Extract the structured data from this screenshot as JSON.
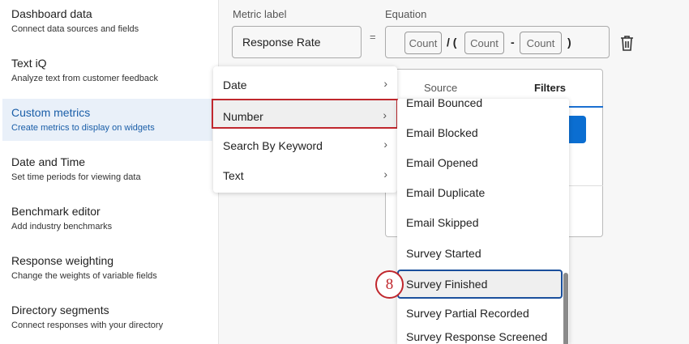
{
  "sidebar": {
    "items": [
      {
        "title": "Dashboard data",
        "subtitle": "Connect data sources and fields"
      },
      {
        "title": "Text iQ",
        "subtitle": "Analyze text from customer feedback"
      },
      {
        "title": "Custom metrics",
        "subtitle": "Create metrics to display on widgets",
        "active": true
      },
      {
        "title": "Date and Time",
        "subtitle": "Set time periods for viewing data"
      },
      {
        "title": "Benchmark editor",
        "subtitle": "Add industry benchmarks"
      },
      {
        "title": "Response weighting",
        "subtitle": "Change the weights of variable fields"
      },
      {
        "title": "Directory segments",
        "subtitle": "Connect responses with your directory"
      }
    ]
  },
  "metric": {
    "label_heading": "Metric label",
    "label_value": "Response Rate",
    "equals": "=",
    "equation_heading": "Equation",
    "chips": [
      "Count",
      "Count",
      "Count"
    ],
    "ops": [
      "/ (",
      "-",
      ")"
    ]
  },
  "card": {
    "tabs": [
      "Source",
      "Filters"
    ],
    "active_tab": "Filters"
  },
  "field_menu": {
    "items": [
      "Date",
      "Number",
      "Search By Keyword",
      "Text"
    ],
    "selected": "Number"
  },
  "number_menu": {
    "items": [
      "Email Bounced",
      "Email Blocked",
      "Email Opened",
      "Email Duplicate",
      "Email Skipped",
      "Survey Started",
      "Survey Finished",
      "Survey Partial Recorded",
      "Survey Response Screened Out"
    ],
    "selected": "Survey Finished"
  },
  "step_badge": "8",
  "colors": {
    "accent": "#1a5ea8",
    "highlight": "#c0272d",
    "primary_button": "#0b6ed1"
  }
}
